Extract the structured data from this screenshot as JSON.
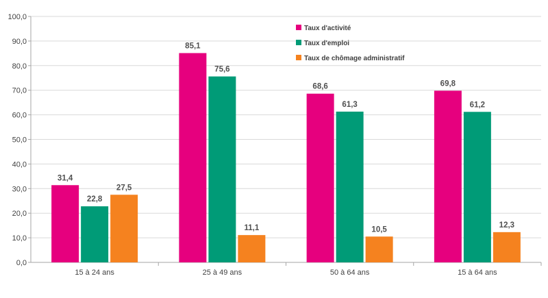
{
  "chart_data": {
    "type": "bar",
    "categories": [
      "15 à 24 ans",
      "25 à 49 ans",
      "50 à 64 ans",
      "15 à 64 ans"
    ],
    "series": [
      {
        "name": "Taux d'activité",
        "color": "#E6007E",
        "values": [
          31.4,
          85.1,
          68.6,
          69.8
        ],
        "labels": [
          "31,4",
          "85,1",
          "68,6",
          "69,8"
        ]
      },
      {
        "name": "Taux d'emploi",
        "color": "#009B77",
        "values": [
          22.8,
          75.6,
          61.3,
          61.2
        ],
        "labels": [
          "22,8",
          "75,6",
          "61,3",
          "61,2"
        ]
      },
      {
        "name": "Taux de chômage administratif",
        "color": "#F5821F",
        "values": [
          27.5,
          11.1,
          10.5,
          12.3
        ],
        "labels": [
          "27,5",
          "11,1",
          "10,5",
          "12,3"
        ]
      }
    ],
    "ylim": [
      0,
      100
    ],
    "yticks": [
      {
        "value": 0,
        "label": "0,0"
      },
      {
        "value": 10,
        "label": "10,0"
      },
      {
        "value": 20,
        "label": "20,0"
      },
      {
        "value": 30,
        "label": "30,0"
      },
      {
        "value": 40,
        "label": "40,0"
      },
      {
        "value": 50,
        "label": "50,0"
      },
      {
        "value": 60,
        "label": "60,0"
      },
      {
        "value": 70,
        "label": "70,0"
      },
      {
        "value": 80,
        "label": "80,0"
      },
      {
        "value": 90,
        "label": "90,0"
      },
      {
        "value": 100,
        "label": "100,0"
      }
    ],
    "grid": true,
    "legend_position": "top-right",
    "title": "",
    "xlabel": "",
    "ylabel": ""
  }
}
